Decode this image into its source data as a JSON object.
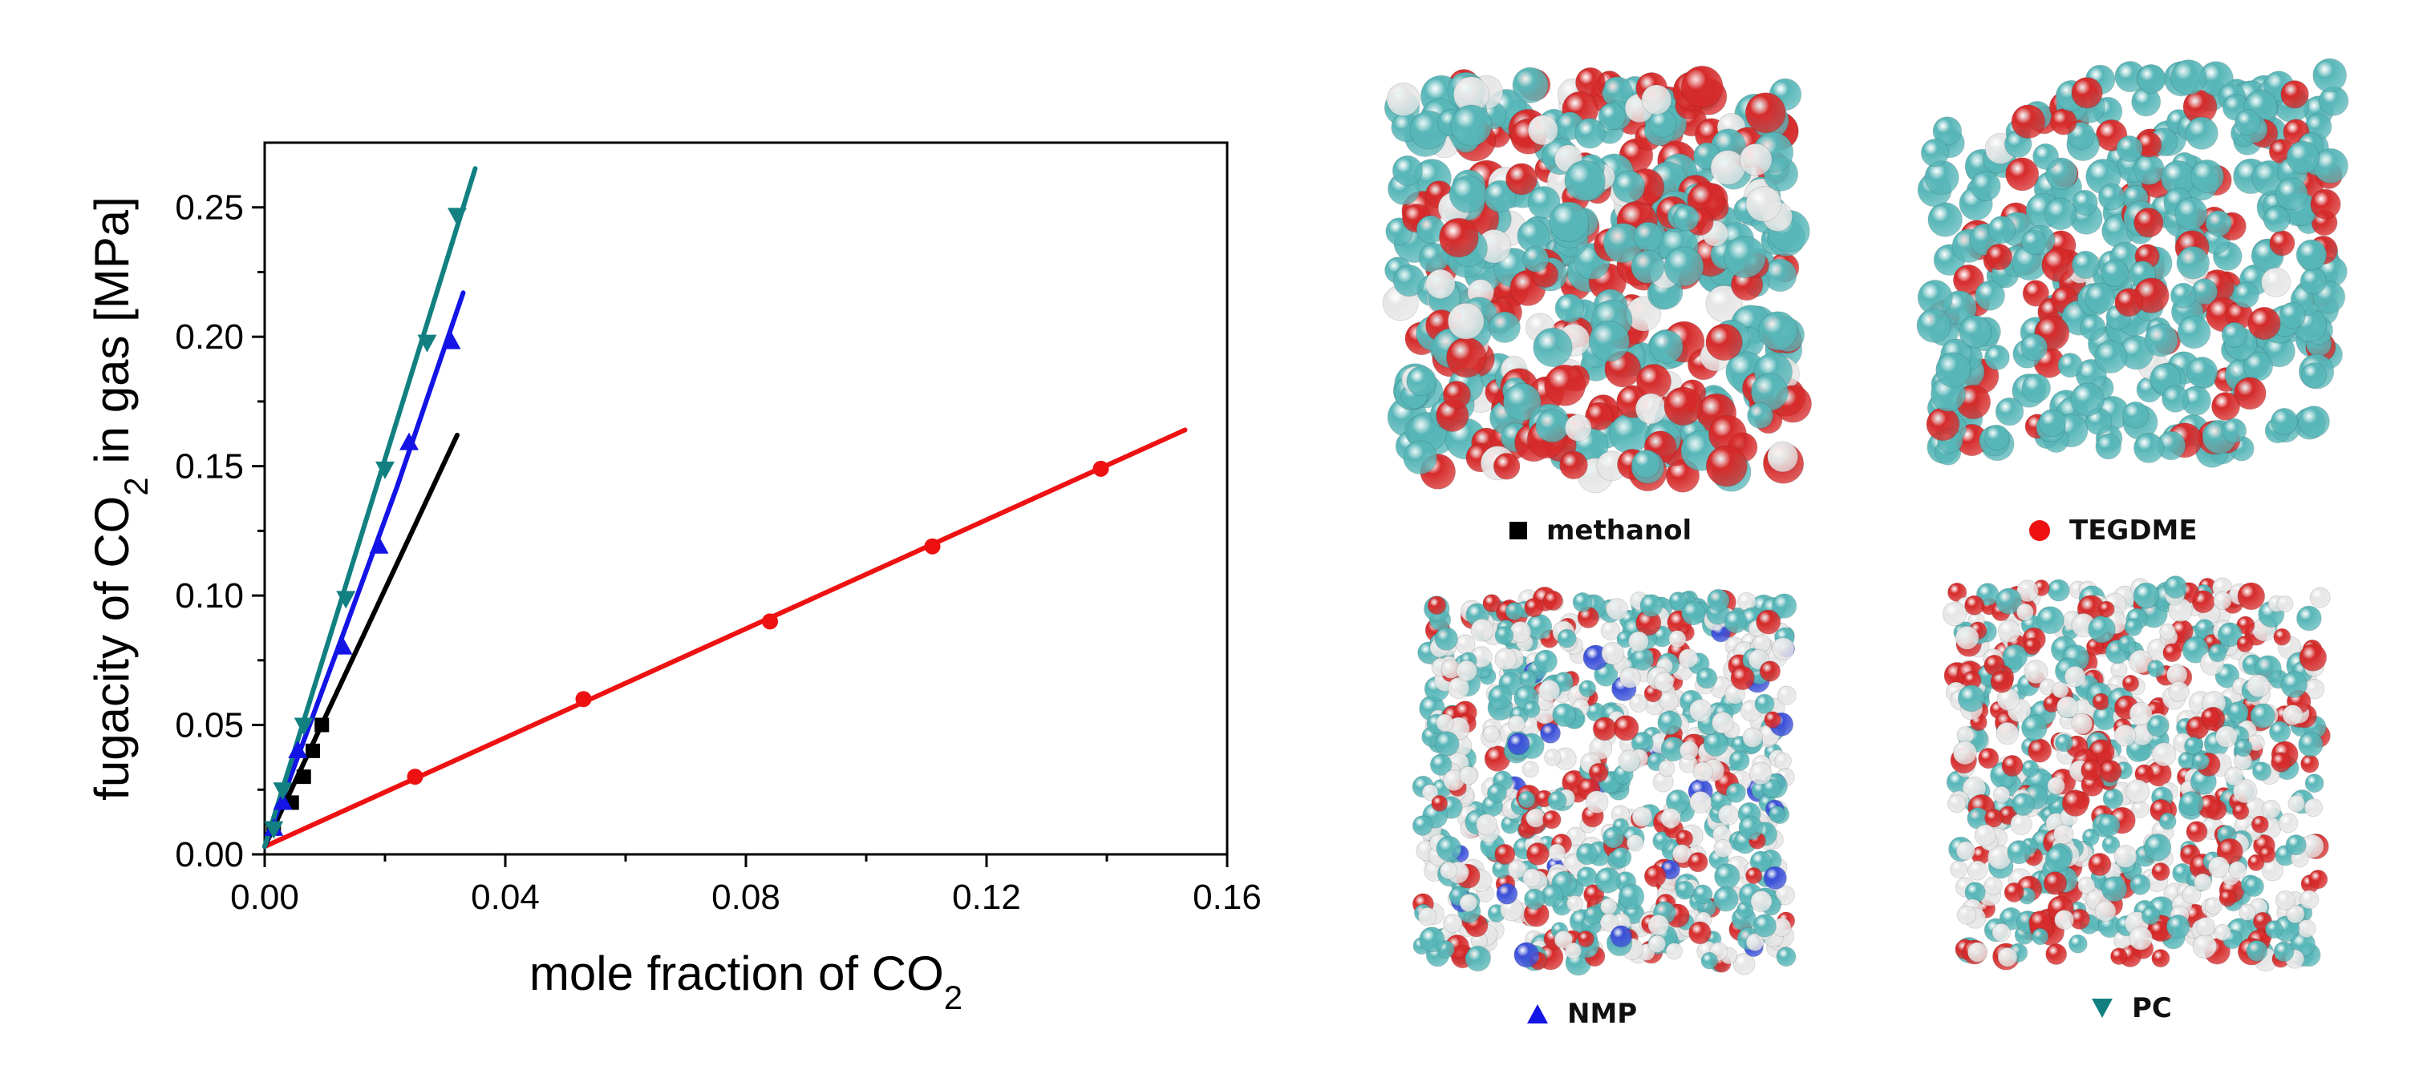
{
  "chart_data": {
    "type": "scatter",
    "xlabel": {
      "main": "mole fraction of CO",
      "sub": "2"
    },
    "ylabel": {
      "pre": "fugacity of CO",
      "sub": "2",
      "post": " in gas [MPa]"
    },
    "xlim": [
      0,
      0.16
    ],
    "ylim": [
      0,
      0.275
    ],
    "xticks": [
      "0.00",
      "0.04",
      "0.08",
      "0.12",
      "0.16"
    ],
    "yticks": [
      "0.00",
      "0.05",
      "0.10",
      "0.15",
      "0.20",
      "0.25"
    ],
    "grid": false,
    "series": [
      {
        "name": "methanol",
        "marker": "square",
        "color": "#000000",
        "points": [
          [
            0.0015,
            0.01
          ],
          [
            0.0045,
            0.02
          ],
          [
            0.0065,
            0.03
          ],
          [
            0.008,
            0.04
          ],
          [
            0.0095,
            0.05
          ]
        ],
        "fit_line": [
          [
            0,
            0.003
          ],
          [
            0.032,
            0.162
          ]
        ]
      },
      {
        "name": "TEGDME",
        "marker": "circle",
        "color": "#ee1111",
        "points": [
          [
            0.025,
            0.03
          ],
          [
            0.053,
            0.06
          ],
          [
            0.084,
            0.09
          ],
          [
            0.111,
            0.119
          ],
          [
            0.139,
            0.149
          ]
        ],
        "fit_line": [
          [
            0,
            0.003
          ],
          [
            0.153,
            0.164
          ]
        ]
      },
      {
        "name": "NMP",
        "marker": "triangle-up",
        "color": "#1414e6",
        "points": [
          [
            0.0015,
            0.01
          ],
          [
            0.003,
            0.02
          ],
          [
            0.0055,
            0.04
          ],
          [
            0.013,
            0.08
          ],
          [
            0.019,
            0.119
          ],
          [
            0.024,
            0.159
          ],
          [
            0.031,
            0.198
          ]
        ],
        "fit_line": [
          [
            0,
            0.003
          ],
          [
            0.0135,
            0.088
          ],
          [
            0.022,
            0.142
          ],
          [
            0.033,
            0.217
          ]
        ]
      },
      {
        "name": "PC",
        "marker": "triangle-down",
        "color": "#128080",
        "points": [
          [
            0.0015,
            0.01
          ],
          [
            0.003,
            0.025
          ],
          [
            0.0065,
            0.05
          ],
          [
            0.0135,
            0.099
          ],
          [
            0.02,
            0.149
          ],
          [
            0.027,
            0.198
          ],
          [
            0.032,
            0.247
          ]
        ],
        "fit_line": [
          [
            0,
            0.003
          ],
          [
            0.035,
            0.265
          ]
        ]
      }
    ]
  },
  "panels": [
    {
      "caption": "methanol",
      "marker": "square",
      "marker_color": "#000000",
      "atoms": [
        "#57b6b8",
        "#d62a2a",
        "#e6e6e6"
      ]
    },
    {
      "caption": "TEGDME",
      "marker": "circle",
      "marker_color": "#ee1111",
      "atoms": [
        "#57b6b8",
        "#d62a2a",
        "#e6e6e6"
      ]
    },
    {
      "caption": "NMP",
      "marker": "triangle-up",
      "marker_color": "#1414e6",
      "atoms": [
        "#57b6b8",
        "#d62a2a",
        "#e6e6e6",
        "#3a4fd8"
      ]
    },
    {
      "caption": "PC",
      "marker": "triangle-down",
      "marker_color": "#128080",
      "atoms": [
        "#57b6b8",
        "#d62a2a",
        "#e6e6e6"
      ]
    }
  ]
}
